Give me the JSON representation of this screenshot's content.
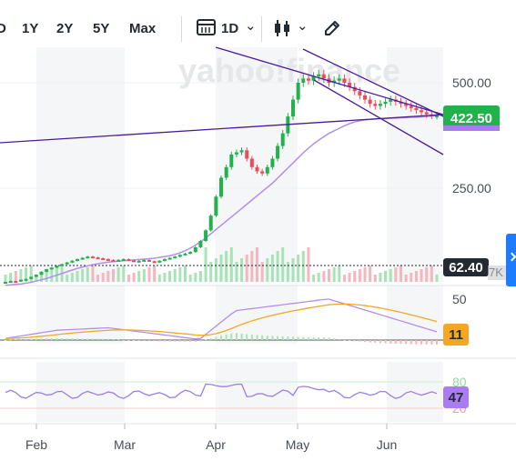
{
  "toolbar": {
    "range_partial": "D",
    "range_1y": "1Y",
    "range_2y": "2Y",
    "range_5y": "5Y",
    "range_max": "Max",
    "interval": "1D",
    "interval_chevron": "⌄",
    "type_chevron": "⌄",
    "icons": [
      "calendar-icon",
      "candlestick-icon",
      "draw-pencil-icon",
      "chevron-down-icon"
    ]
  },
  "watermark": "yahoo!finance",
  "colors": {
    "up": "#21b24b",
    "down": "#eb4c5c",
    "trend": "#4a1a9c",
    "ma": "#b18ef0",
    "macd": "#b18ef0",
    "signal": "#f5a623",
    "rsi": "#9c7ee8",
    "price_badge": "#21b24b",
    "volume_badge": "#232a31",
    "macd_badge": "#f5a623",
    "rsi_badge": "#a97cf1"
  },
  "price_axis": {
    "ticks": [
      500.0,
      250.0
    ],
    "tick_labels": [
      "500.00",
      "250.00"
    ]
  },
  "price_badge": "422.50",
  "volume_badge": "62.40",
  "volume_suffix": "7K",
  "macd_axis": {
    "ticks": [
      50
    ],
    "tick_labels": [
      "50"
    ]
  },
  "macd_badge": "11",
  "rsi_axis": {
    "tick_labels": [
      "80",
      "20"
    ]
  },
  "rsi_badge": "47",
  "x_labels": [
    "Feb",
    "Mar",
    "Apr",
    "May",
    "Jun"
  ],
  "chart_data": {
    "type": "candlestick",
    "series": [
      {
        "values": [
          28,
          30,
          29,
          33,
          35,
          40,
          45,
          52,
          58,
          62,
          66,
          70,
          74,
          78,
          82,
          85,
          88,
          86,
          84,
          82,
          80,
          78,
          80,
          82,
          79,
          77,
          78,
          80,
          77,
          75,
          78,
          82,
          85,
          88,
          92,
          95,
          99,
          110,
          125,
          150,
          185,
          230,
          275,
          300,
          330,
          335,
          340,
          320,
          300,
          290,
          285,
          300,
          320,
          350,
          380,
          420,
          460,
          500,
          510,
          505,
          515,
          520,
          510,
          500,
          505,
          510,
          500,
          490,
          480,
          470,
          460,
          450,
          445,
          450,
          455,
          460,
          455,
          450,
          445,
          440,
          435,
          430,
          425,
          422,
          422.5
        ]
      },
      {
        "values": [
          20,
          21,
          22,
          23,
          25,
          27,
          30,
          33,
          36,
          40,
          44,
          48,
          52,
          56,
          60,
          63,
          66,
          69,
          71,
          73,
          75,
          76,
          77,
          78,
          79,
          80,
          81,
          82,
          83,
          84,
          86,
          88,
          90,
          93,
          97,
          102,
          108,
          115,
          123,
          132,
          142,
          152,
          162,
          172,
          182,
          192,
          202,
          212,
          222,
          232,
          242,
          252,
          262,
          274,
          286,
          298,
          310,
          322,
          334,
          345,
          355,
          364,
          372,
          380,
          386,
          392,
          398,
          403,
          407,
          410,
          412,
          413,
          414,
          415,
          415,
          416,
          416,
          417,
          417,
          418,
          418,
          419,
          420,
          421,
          422
        ]
      }
    ],
    "x_labels": [
      "Feb",
      "Mar",
      "Apr",
      "May",
      "Jun"
    ],
    "y_ticks": [
      500.0,
      250.0
    ],
    "last_price": 422.5
  }
}
